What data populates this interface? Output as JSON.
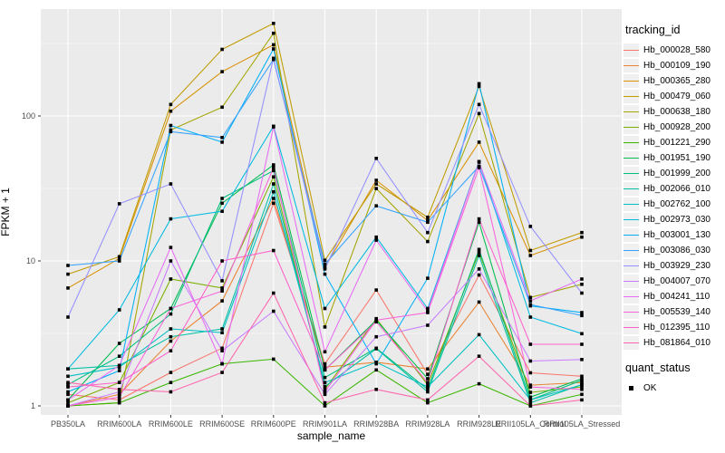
{
  "figure": {
    "xlabel": "sample_name",
    "ylabel": "FPKM + 1",
    "tracking_legend_title": "tracking_id",
    "quant_legend_title": "quant_status",
    "quant_status_label": "OK"
  },
  "chart_data": {
    "type": "line",
    "title": "",
    "xlabel": "sample_name",
    "ylabel": "FPKM + 1",
    "y_scale": "log10",
    "y_ticks": [
      1,
      10,
      100
    ],
    "ylim": [
      1,
      550
    ],
    "grid": "on",
    "panel_background": "#EBEBEB",
    "gridline_color": "#FFFFFF",
    "point_shape": "filled-black-square",
    "legend_position": "right",
    "legend_titles": {
      "color": "tracking_id",
      "shape": "quant_status"
    },
    "quant_status_value": "OK",
    "categories": [
      "PB350LA",
      "RRIM600LA",
      "RRIM600LE",
      "RRIM600SE",
      "RRIM600PE",
      "RRIM901LA",
      "RRIM928BA",
      "RRIM928LA",
      "RRIM928LE",
      "RRII105LA_Control",
      "RRII105LA_Stressed"
    ],
    "series": [
      {
        "name": "Hb_000028_580",
        "color": "#F8766D",
        "values": [
          1.2,
          1.1,
          1.7,
          2.5,
          25,
          1.95,
          6.3,
          1.65,
          8.0,
          1.69,
          1.6
        ]
      },
      {
        "name": "Hb_000109_190",
        "color": "#EA8331",
        "values": [
          1.0,
          1.2,
          2.8,
          5.3,
          27,
          1.85,
          2.0,
          1.8,
          5.2,
          1.39,
          1.45
        ]
      },
      {
        "name": "Hb_000365_280",
        "color": "#D89000",
        "values": [
          6.5,
          10.4,
          108,
          202,
          310,
          9.0,
          36,
          19,
          66,
          10.9,
          14.6
        ]
      },
      {
        "name": "Hb_000479_060",
        "color": "#C09B00",
        "values": [
          8.1,
          10.7,
          120,
          288,
          435,
          10.1,
          34,
          20,
          160,
          11.8,
          15.7
        ]
      },
      {
        "name": "Hb_000638_180",
        "color": "#A3A500",
        "values": [
          1.0,
          1.05,
          80,
          115,
          372,
          3.5,
          31.6,
          13.6,
          104,
          5.6,
          6.9
        ]
      },
      {
        "name": "Hb_000928_200",
        "color": "#7CAE00",
        "values": [
          1.05,
          1.45,
          7.5,
          6.5,
          38,
          1.3,
          4.0,
          1.4,
          11.5,
          1.24,
          1.35
        ]
      },
      {
        "name": "Hb_001221_290",
        "color": "#39B600",
        "values": [
          1.0,
          1.05,
          1.45,
          1.95,
          2.1,
          1.0,
          1.77,
          1.05,
          1.42,
          1.0,
          1.2
        ]
      },
      {
        "name": "Hb_001951_190",
        "color": "#00BB4E",
        "values": [
          1.1,
          2.7,
          4.7,
          25,
          46,
          1.77,
          3.9,
          1.54,
          18.5,
          1.15,
          1.54
        ]
      },
      {
        "name": "Hb_001999_200",
        "color": "#00BF7D",
        "values": [
          1.4,
          2.2,
          4.3,
          27,
          42,
          1.57,
          2.5,
          1.3,
          12.0,
          1.1,
          1.5
        ]
      },
      {
        "name": "Hb_002066_010",
        "color": "#00C1A3",
        "values": [
          1.8,
          1.9,
          3.0,
          3.4,
          34,
          1.36,
          2.48,
          1.25,
          10.9,
          1.05,
          1.4
        ]
      },
      {
        "name": "Hb_002762_100",
        "color": "#00BFC4",
        "values": [
          1.6,
          1.85,
          3.4,
          3.2,
          30,
          1.45,
          2.0,
          1.35,
          3.1,
          1.1,
          1.4
        ]
      },
      {
        "name": "Hb_002973_030",
        "color": "#00BAE0",
        "values": [
          1.8,
          4.6,
          19.5,
          22,
          85,
          4.7,
          14.6,
          4.7,
          48.5,
          4.1,
          3.15
        ]
      },
      {
        "name": "Hb_003001_130",
        "color": "#00B0F6",
        "values": [
          1.25,
          1.75,
          86,
          66,
          290,
          8.1,
          1.95,
          7.6,
          167,
          4.9,
          4.4
        ]
      },
      {
        "name": "Hb_003086_030",
        "color": "#35A2FF",
        "values": [
          9.3,
          10.0,
          78,
          71,
          245,
          9.5,
          24,
          18.5,
          45,
          5.0,
          4.2
        ]
      },
      {
        "name": "Hb_003929_230",
        "color": "#9590FF",
        "values": [
          4.1,
          24.8,
          34,
          7.3,
          250,
          8.8,
          51,
          15.7,
          120,
          17.3,
          6.0
        ]
      },
      {
        "name": "Hb_004007_070",
        "color": "#C77CFF",
        "values": [
          1.0,
          1.25,
          10,
          2.4,
          4.5,
          1.2,
          3.0,
          3.6,
          8.8,
          2.04,
          2.09
        ]
      },
      {
        "name": "Hb_004241_110",
        "color": "#E76BF3",
        "values": [
          1.1,
          1.9,
          12.4,
          1.95,
          84,
          2.36,
          13.9,
          4.5,
          48,
          5.3,
          7.5
        ]
      },
      {
        "name": "Hb_005539_140",
        "color": "#FA62DB",
        "values": [
          1.0,
          1.15,
          4.7,
          6.2,
          44,
          1.25,
          3.9,
          4.4,
          44,
          1.35,
          1.3
        ]
      },
      {
        "name": "Hb_012395_110",
        "color": "#FF61CC",
        "values": [
          1.35,
          1.45,
          2.4,
          10,
          11.8,
          1.77,
          3.8,
          1.45,
          19.5,
          2.66,
          2.66
        ]
      },
      {
        "name": "Hb_081864_010",
        "color": "#FF65AE",
        "values": [
          1.45,
          1.3,
          1.25,
          1.7,
          6.0,
          1.05,
          1.3,
          1.1,
          2.2,
          1.0,
          1.1
        ]
      }
    ]
  }
}
